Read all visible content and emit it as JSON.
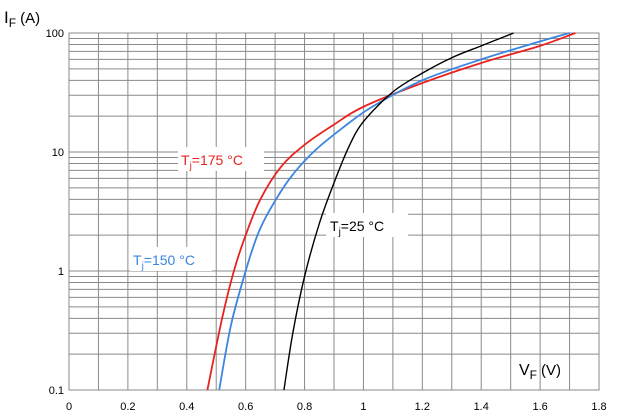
{
  "chart_data": {
    "type": "line",
    "title": "",
    "ylabel": {
      "main": "I",
      "sub": "F",
      "unit": "(A)"
    },
    "xlabel": {
      "main": "V",
      "sub": "F",
      "unit": "(V)"
    },
    "xlim": [
      0,
      1.8
    ],
    "ylim": [
      0.1,
      100
    ],
    "yscale": "log",
    "xticks": [
      "0",
      "0.2",
      "0.4",
      "0.6",
      "0.8",
      "1",
      "1.2",
      "1.4",
      "1.6",
      "1.8"
    ],
    "yticks": [
      "0.1",
      "1",
      "10",
      "100"
    ],
    "grid": true,
    "series": [
      {
        "label": {
          "main": "T",
          "sub": "j",
          "rest": "=175 °C"
        },
        "color": "#e8231f",
        "x": [
          0.47,
          0.52,
          0.56,
          0.6,
          0.65,
          0.72,
          0.8,
          0.9,
          1.0,
          1.2,
          1.4,
          1.6,
          1.72
        ],
        "y": [
          0.1,
          0.4,
          1.0,
          2.0,
          4.0,
          7.5,
          11.5,
          17.0,
          24.0,
          38.0,
          56.0,
          78.0,
          100.0
        ]
      },
      {
        "label": {
          "main": "T",
          "sub": "j",
          "rest": "=150 °C"
        },
        "color": "#3b86e0",
        "x": [
          0.51,
          0.55,
          0.6,
          0.64,
          0.68,
          0.75,
          0.83,
          0.93,
          1.03,
          1.2,
          1.4,
          1.6,
          1.7
        ],
        "y": [
          0.1,
          0.35,
          1.0,
          2.0,
          3.2,
          6.0,
          10.0,
          16.0,
          24.0,
          40.0,
          60.0,
          85.0,
          100.0
        ]
      },
      {
        "label": {
          "main": "T",
          "sub": "j",
          "rest": "=25 °C"
        },
        "color": "#000000",
        "x": [
          0.73,
          0.76,
          0.8,
          0.85,
          0.9,
          0.95,
          1.0,
          1.1,
          1.2,
          1.3,
          1.4,
          1.51
        ],
        "y": [
          0.1,
          0.3,
          0.9,
          2.5,
          5.5,
          11.0,
          18.0,
          32.0,
          46.0,
          62.0,
          78.0,
          100.0
        ]
      }
    ]
  }
}
